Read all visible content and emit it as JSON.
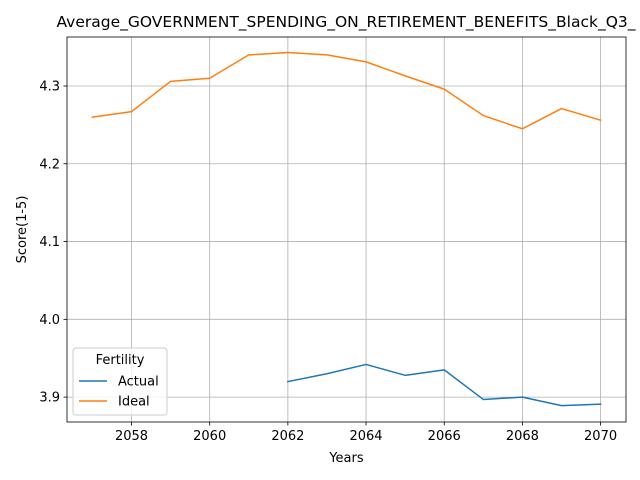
{
  "chart_data": {
    "type": "line",
    "title": "Average_GOVERNMENT_SPENDING_ON_RETIREMENT_BENEFITS_Black_Q3_",
    "xlabel": "Years",
    "ylabel": "Score(1-5)",
    "xlim": [
      2056.35,
      2070.65
    ],
    "ylim": [
      3.868,
      4.363
    ],
    "xticks": [
      2058,
      2060,
      2062,
      2064,
      2066,
      2068,
      2070
    ],
    "yticks": [
      3.9,
      4.0,
      4.1,
      4.2,
      4.3
    ],
    "xtick_labels": [
      "2058",
      "2060",
      "2062",
      "2064",
      "2066",
      "2068",
      "2070"
    ],
    "ytick_labels": [
      "3.9",
      "4.0",
      "4.1",
      "4.2",
      "4.3"
    ],
    "grid": true,
    "legend": {
      "title": "Fertility",
      "placement": "lower-left"
    },
    "series": [
      {
        "name": "Actual",
        "color": "#1f77b4",
        "x": [
          2062,
          2063,
          2064,
          2065,
          2066,
          2067,
          2068,
          2069,
          2070
        ],
        "values": [
          3.92,
          3.93,
          3.942,
          3.928,
          3.935,
          3.897,
          3.9,
          3.889,
          3.891
        ]
      },
      {
        "name": "Ideal",
        "color": "#ff7f0e",
        "x": [
          2057,
          2058,
          2059,
          2060,
          2061,
          2062,
          2063,
          2064,
          2065,
          2066,
          2067,
          2068,
          2069,
          2070
        ],
        "values": [
          4.26,
          4.267,
          4.306,
          4.31,
          4.34,
          4.343,
          4.34,
          4.331,
          4.313,
          4.296,
          4.262,
          4.245,
          4.271,
          4.256
        ]
      }
    ]
  }
}
